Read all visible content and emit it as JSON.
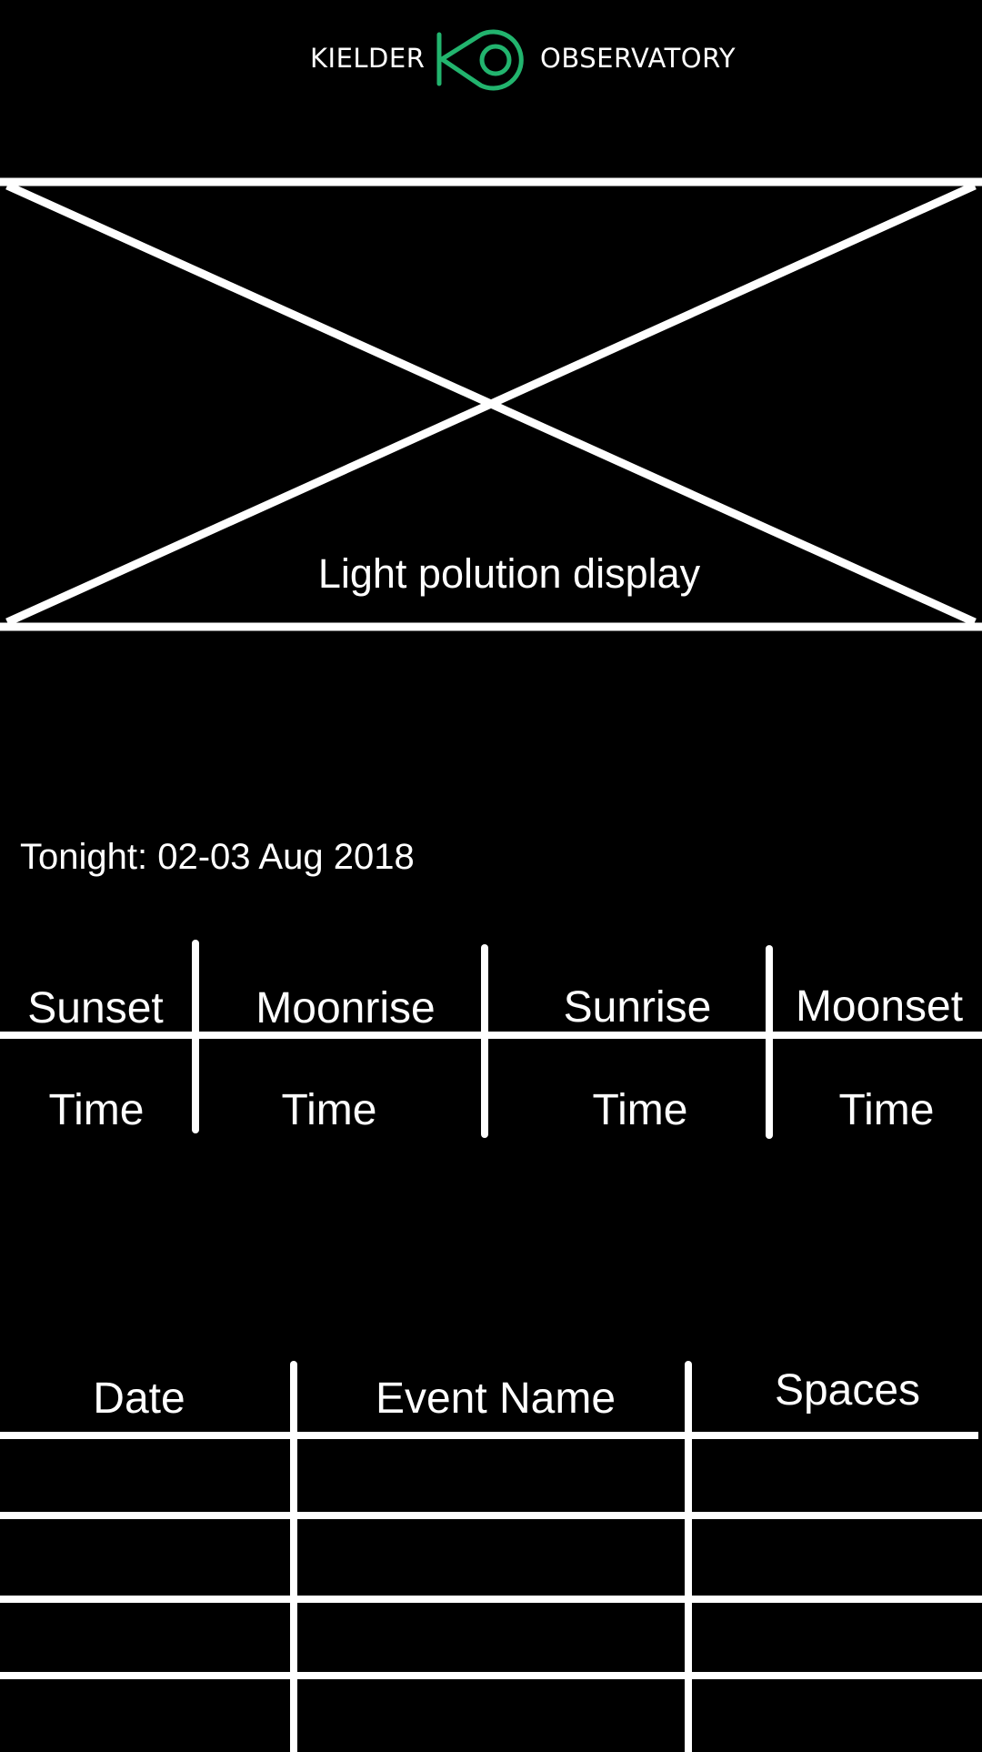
{
  "logo": {
    "left_text": "KIELDER",
    "right_text": "OBSERVATORY",
    "mark_icon": "kielder-observatory-logo-mark",
    "accent_color": "#22b46e"
  },
  "hero": {
    "caption": "Light polution display"
  },
  "tonight": {
    "label": "Tonight: 02-03 Aug 2018"
  },
  "astro_table": {
    "headers": [
      "Sunset",
      "Moonrise",
      "Sunrise",
      "Moonset"
    ],
    "values": [
      "Time",
      "Time",
      "Time",
      "Time"
    ]
  },
  "events_table": {
    "headers": [
      "Date",
      "Event Name",
      "Spaces"
    ],
    "rows": [
      [
        "",
        "",
        ""
      ],
      [
        "",
        "",
        ""
      ],
      [
        "",
        "",
        ""
      ],
      [
        "",
        "",
        ""
      ]
    ]
  }
}
